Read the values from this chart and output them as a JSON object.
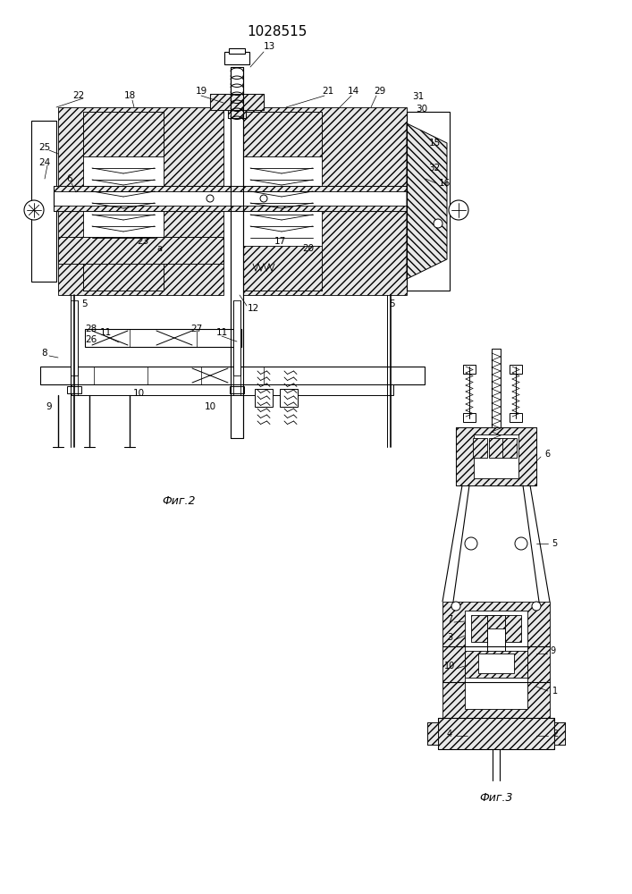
{
  "title": "1028515",
  "title_fontsize": 11,
  "fig2_label": "Фиг.2",
  "fig3_label": "Фиг.3",
  "background_color": "#ffffff",
  "line_color": "#000000",
  "fig_width": 7.07,
  "fig_height": 10.0
}
